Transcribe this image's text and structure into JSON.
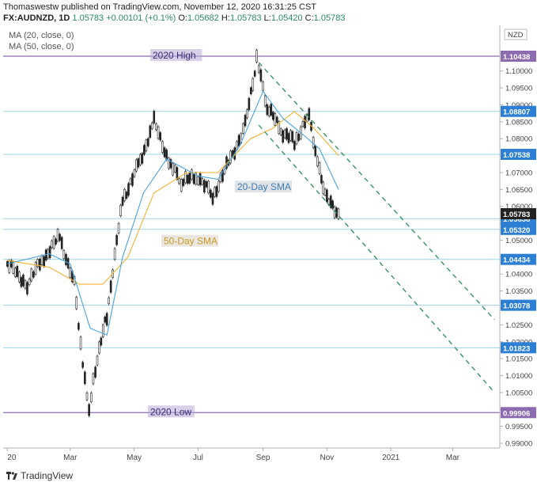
{
  "header": {
    "line1": "Thomaswestw published on TradingView.com, November 12, 2020 16:31:25 CST",
    "symbol": "FX:AUDNZD, 1D",
    "last": "1.05783",
    "change": "+0.00101 (+0.1%)",
    "o_label": "O:",
    "o_value": "1.05682",
    "h_label": "H:",
    "h_value": "1.05783",
    "l_label": "L:",
    "l_value": "1.05420",
    "c_label": "C:",
    "c_value": "1.05783"
  },
  "indicators": {
    "ma20": "MA (20, close, 0)",
    "ma50": "MA (50, close, 0)"
  },
  "footer": {
    "brand": "TradingView"
  },
  "colors": {
    "hline": "#9fd3e6",
    "extreme_line": "#8c6bb1",
    "ma20": "#4aa3df",
    "ma50": "#f2b233",
    "channel": "#2e8b57",
    "label_bg_blue": "#2d7fd3",
    "label_bg_gray": "#9aa0a6",
    "price_black": "#222222"
  },
  "chart_data": {
    "type": "line",
    "title": "",
    "currency_label": "NZD",
    "y_axis_ticks": [
      "1.11000",
      "1.10500",
      "1.10000",
      "1.09500",
      "1.09000",
      "1.08500",
      "1.08000",
      "1.07500",
      "1.07000",
      "1.06500",
      "1.06000",
      "1.05500",
      "1.05000",
      "1.04500",
      "1.04000",
      "1.03500",
      "1.03000",
      "1.02500",
      "1.02000",
      "1.01500",
      "1.01000",
      "1.00500",
      "1.00000",
      "0.99500",
      "0.99000"
    ],
    "x_axis_ticks": [
      "20",
      "Mar",
      "May",
      "Jul",
      "Sep",
      "Nov",
      "2021",
      "Mar"
    ],
    "ylim": [
      0.9886,
      1.1135
    ],
    "horizontal_levels": [
      {
        "value": 1.10438,
        "label": "1.10438",
        "style": "extreme"
      },
      {
        "value": 1.08807,
        "label": "1.08807",
        "style": "level"
      },
      {
        "value": 1.07538,
        "label": "1.07538",
        "style": "level"
      },
      {
        "value": 1.05638,
        "label": "1.05638",
        "style": "level"
      },
      {
        "value": 1.0532,
        "label": "1.05320",
        "style": "level"
      },
      {
        "value": 1.04434,
        "label": "1.04434",
        "style": "level"
      },
      {
        "value": 1.03078,
        "label": "1.03078",
        "style": "level"
      },
      {
        "value": 1.01823,
        "label": "1.01823",
        "style": "level"
      },
      {
        "value": 0.99906,
        "label": "0.99906",
        "style": "extreme"
      }
    ],
    "last_price_label": "1.05783",
    "annotations": [
      "2020 High",
      "2020 Low",
      "20-Day SMA",
      "50-Day SMA"
    ],
    "price_series": {
      "name": "AUDNZD",
      "x": [
        "2020-01-01",
        "2020-01-20",
        "2020-02-05",
        "2020-02-20",
        "2020-03-05",
        "2020-03-15",
        "2020-03-19",
        "2020-03-25",
        "2020-04-05",
        "2020-04-20",
        "2020-05-05",
        "2020-05-20",
        "2020-06-05",
        "2020-06-15",
        "2020-07-01",
        "2020-07-15",
        "2020-08-01",
        "2020-08-15",
        "2020-08-26",
        "2020-09-05",
        "2020-09-20",
        "2020-10-01",
        "2020-10-15",
        "2020-10-25",
        "2020-11-01",
        "2020-11-12"
      ],
      "values": [
        1.043,
        1.037,
        1.045,
        1.051,
        1.037,
        1.008,
        0.9995,
        1.012,
        1.028,
        1.062,
        1.072,
        1.085,
        1.072,
        1.067,
        1.069,
        1.063,
        1.074,
        1.084,
        1.1035,
        1.089,
        1.082,
        1.079,
        1.087,
        1.07,
        1.062,
        1.0578
      ]
    },
    "ma20_series": {
      "x": [
        "2020-01-01",
        "2020-02-10",
        "2020-03-01",
        "2020-03-20",
        "2020-04-05",
        "2020-04-20",
        "2020-05-10",
        "2020-06-01",
        "2020-07-01",
        "2020-07-20",
        "2020-08-10",
        "2020-09-01",
        "2020-09-20",
        "2020-10-10",
        "2020-10-25",
        "2020-11-12"
      ],
      "values": [
        1.043,
        1.046,
        1.043,
        1.024,
        1.022,
        1.045,
        1.064,
        1.074,
        1.069,
        1.068,
        1.078,
        1.094,
        1.086,
        1.081,
        1.077,
        1.065
      ]
    },
    "ma50_series": {
      "x": [
        "2020-01-01",
        "2020-02-10",
        "2020-03-10",
        "2020-04-01",
        "2020-04-25",
        "2020-05-20",
        "2020-06-20",
        "2020-07-20",
        "2020-08-20",
        "2020-09-10",
        "2020-10-01",
        "2020-10-20",
        "2020-11-12"
      ],
      "values": [
        1.044,
        1.042,
        1.037,
        1.037,
        1.045,
        1.064,
        1.07,
        1.07,
        1.08,
        1.083,
        1.088,
        1.083,
        1.075
      ]
    },
    "channel_lines": [
      {
        "x": [
          "2020-08-28",
          "2021-04-10"
        ],
        "values": [
          1.1025,
          1.0265
        ]
      },
      {
        "x": [
          "2020-08-28",
          "2021-04-10"
        ],
        "values": [
          1.084,
          1.005
        ]
      }
    ],
    "grid": false,
    "legend": "none"
  }
}
